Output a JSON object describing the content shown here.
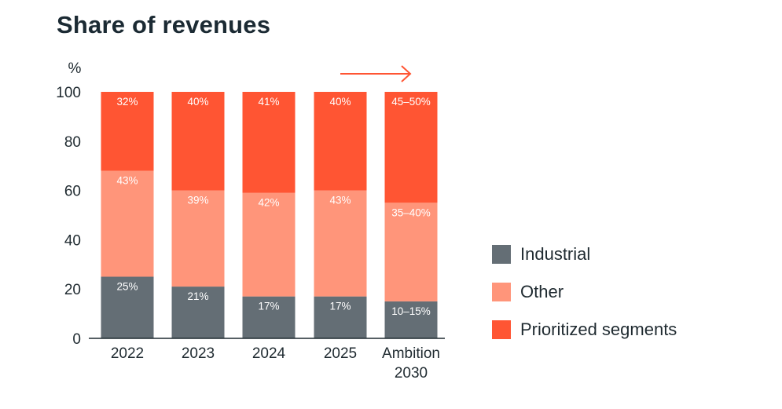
{
  "title": "Share of revenues",
  "colors": {
    "industrial": "#646e75",
    "other": "#ff957a",
    "prioritized": "#ff5533",
    "arrow": "#ff5533",
    "axis": "#1f2a30"
  },
  "chart_data": {
    "type": "bar",
    "stacked": true,
    "ylabel": "%",
    "ylim": [
      0,
      100
    ],
    "yticks": [
      "0",
      "20",
      "40",
      "60",
      "80",
      "100"
    ],
    "categories": [
      [
        "2022"
      ],
      [
        "2023"
      ],
      [
        "2024"
      ],
      [
        "2025"
      ],
      [
        "Ambition",
        "2030"
      ]
    ],
    "series": [
      {
        "name": "Industrial",
        "color_key": "industrial",
        "values": [
          25,
          21,
          17,
          17,
          15
        ],
        "labels": [
          "25%",
          "21%",
          "17%",
          "17%",
          "10–15%"
        ]
      },
      {
        "name": "Other",
        "color_key": "other",
        "values": [
          43,
          39,
          42,
          43,
          40
        ],
        "labels": [
          "43%",
          "39%",
          "42%",
          "43%",
          "35–40%"
        ]
      },
      {
        "name": "Prioritized segments",
        "color_key": "prioritized",
        "values": [
          32,
          40,
          41,
          40,
          45
        ],
        "labels": [
          "32%",
          "40%",
          "41%",
          "40%",
          "45–50%"
        ]
      }
    ],
    "legend_position": "right",
    "annotation": "arrow above 2025–Ambition 2030"
  }
}
